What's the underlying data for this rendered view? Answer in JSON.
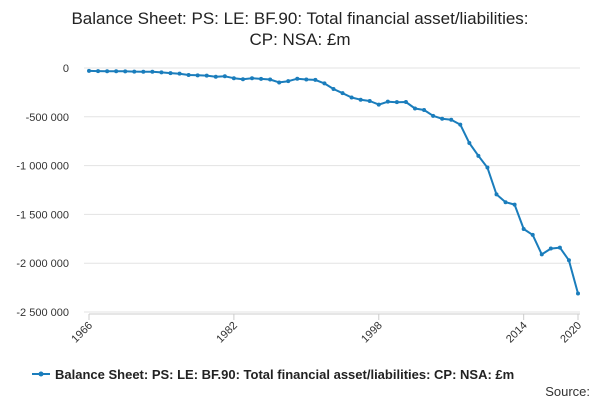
{
  "chart_data": {
    "type": "line",
    "title_lines": [
      "Balance Sheet: PS: LE: BF.90: Total financial asset/liabilities:",
      "CP: NSA: £m"
    ],
    "series": [
      {
        "name": "Balance Sheet: PS: LE: BF.90: Total financial asset/liabilities: CP: NSA: £m",
        "color": "#1a7dbc",
        "x": [
          1966,
          1967,
          1968,
          1969,
          1970,
          1971,
          1972,
          1973,
          1974,
          1975,
          1976,
          1977,
          1978,
          1979,
          1980,
          1981,
          1982,
          1983,
          1984,
          1985,
          1986,
          1987,
          1988,
          1989,
          1990,
          1991,
          1992,
          1993,
          1994,
          1995,
          1996,
          1997,
          1998,
          1999,
          2000,
          2001,
          2002,
          2003,
          2004,
          2005,
          2006,
          2007,
          2008,
          2009,
          2010,
          2011,
          2012,
          2013,
          2014,
          2015,
          2016,
          2017,
          2018,
          2019,
          2020
        ],
        "values": [
          -30000,
          -32000,
          -33000,
          -33000,
          -34000,
          -37000,
          -38000,
          -38000,
          -45000,
          -52000,
          -58000,
          -72000,
          -75000,
          -78000,
          -90000,
          -85000,
          -105000,
          -115000,
          -105000,
          -112000,
          -118000,
          -148000,
          -135000,
          -110000,
          -118000,
          -122000,
          -158000,
          -215000,
          -258000,
          -302000,
          -325000,
          -338000,
          -375000,
          -345000,
          -350000,
          -348000,
          -415000,
          -430000,
          -490000,
          -520000,
          -530000,
          -580000,
          -768000,
          -900000,
          -1020000,
          -1295000,
          -1375000,
          -1400000,
          -1650000,
          -1710000,
          -1910000,
          -1850000,
          -1840000,
          -1970000,
          -2310000
        ]
      }
    ],
    "y_ticks": [
      0,
      -500000,
      -1000000,
      -1500000,
      -2000000,
      -2500000
    ],
    "y_tick_labels": [
      "0",
      "-500 000",
      "-1 000 000",
      "-1 500 000",
      "-2 000 000",
      "-2 500 000"
    ],
    "ylim": [
      -2500000,
      0
    ],
    "x_ticks": [
      1966,
      1982,
      1998,
      2014,
      2020
    ],
    "x_tick_labels": [
      "1966",
      "1982",
      "1998",
      "2014",
      "2020"
    ],
    "xlim": [
      1966,
      2020
    ],
    "grid": "horizontal",
    "legend": "bottom",
    "xlabel": "",
    "ylabel": ""
  },
  "legend": {
    "label": "Balance Sheet: PS: LE: BF.90: Total financial asset/liabilities: CP: NSA: £m"
  },
  "footer": {
    "source": "Source:"
  }
}
